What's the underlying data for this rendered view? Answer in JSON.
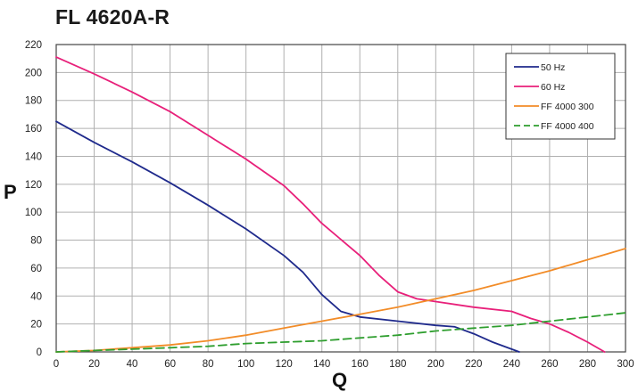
{
  "chart_data": {
    "type": "line",
    "title": "FL 4620A-R",
    "xlabel": "Q",
    "ylabel": "P",
    "xlim": [
      0,
      300
    ],
    "ylim": [
      0,
      220
    ],
    "x_ticks": [
      0,
      20,
      40,
      60,
      80,
      100,
      120,
      140,
      160,
      180,
      200,
      220,
      240,
      260,
      280,
      300
    ],
    "y_ticks": [
      0,
      20,
      40,
      60,
      80,
      100,
      120,
      140,
      160,
      180,
      200,
      220
    ],
    "grid": true,
    "legend_position": "top-right",
    "series": [
      {
        "name": "50 Hz",
        "color": "#1f2a8c",
        "dash": "solid",
        "points": [
          [
            0,
            165
          ],
          [
            20,
            150
          ],
          [
            40,
            136
          ],
          [
            60,
            121
          ],
          [
            80,
            105
          ],
          [
            100,
            88
          ],
          [
            120,
            69
          ],
          [
            130,
            57
          ],
          [
            140,
            41
          ],
          [
            150,
            29
          ],
          [
            160,
            25
          ],
          [
            180,
            22
          ],
          [
            200,
            19
          ],
          [
            210,
            18
          ],
          [
            220,
            13
          ],
          [
            230,
            7
          ],
          [
            240,
            2
          ],
          [
            244,
            0
          ]
        ]
      },
      {
        "name": "60 Hz",
        "color": "#e8207a",
        "dash": "solid",
        "points": [
          [
            0,
            211
          ],
          [
            20,
            199
          ],
          [
            40,
            186
          ],
          [
            60,
            172
          ],
          [
            80,
            155
          ],
          [
            100,
            138
          ],
          [
            120,
            119
          ],
          [
            130,
            106
          ],
          [
            140,
            92
          ],
          [
            160,
            69
          ],
          [
            170,
            55
          ],
          [
            180,
            43
          ],
          [
            190,
            38
          ],
          [
            200,
            36
          ],
          [
            220,
            32
          ],
          [
            240,
            29
          ],
          [
            250,
            24
          ],
          [
            260,
            20
          ],
          [
            270,
            14
          ],
          [
            280,
            7
          ],
          [
            289,
            0
          ]
        ]
      },
      {
        "name": "FF 4000 300",
        "color": "#f28c28",
        "dash": "solid",
        "points": [
          [
            0,
            0
          ],
          [
            20,
            1
          ],
          [
            40,
            3
          ],
          [
            60,
            5
          ],
          [
            80,
            8
          ],
          [
            100,
            12
          ],
          [
            120,
            17
          ],
          [
            140,
            22
          ],
          [
            160,
            27
          ],
          [
            180,
            32
          ],
          [
            200,
            38
          ],
          [
            220,
            44
          ],
          [
            240,
            51
          ],
          [
            260,
            58
          ],
          [
            280,
            66
          ],
          [
            300,
            74
          ]
        ]
      },
      {
        "name": "FF 4000 400",
        "color": "#2e9e2e",
        "dash": "dashed",
        "points": [
          [
            0,
            0
          ],
          [
            20,
            1
          ],
          [
            40,
            2
          ],
          [
            60,
            3
          ],
          [
            80,
            4
          ],
          [
            100,
            6
          ],
          [
            120,
            7
          ],
          [
            140,
            8
          ],
          [
            160,
            10
          ],
          [
            180,
            12
          ],
          [
            200,
            15
          ],
          [
            220,
            17
          ],
          [
            240,
            19
          ],
          [
            260,
            22
          ],
          [
            280,
            25
          ],
          [
            300,
            28
          ]
        ]
      }
    ]
  }
}
